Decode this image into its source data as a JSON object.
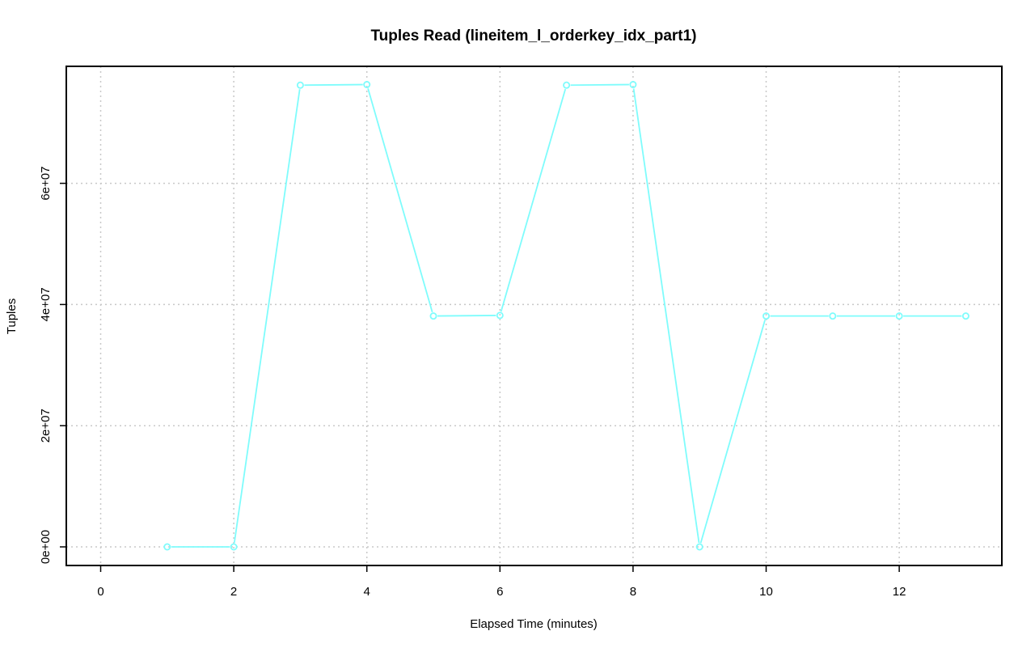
{
  "chart_data": {
    "type": "line",
    "title": "Tuples Read (lineitem_l_orderkey_idx_part1)",
    "xlabel": "Elapsed Time (minutes)",
    "ylabel": "Tuples",
    "xlim": [
      0,
      13
    ],
    "ylim": [
      0,
      76000000
    ],
    "x_ticks": [
      0,
      2,
      4,
      6,
      8,
      10,
      12
    ],
    "x_tick_labels": [
      "0",
      "2",
      "4",
      "6",
      "8",
      "10",
      "12"
    ],
    "y_ticks": [
      0,
      20000000,
      40000000,
      60000000
    ],
    "y_tick_labels": [
      "0e+00",
      "2e+07",
      "4e+07",
      "6e+07"
    ],
    "grid": true,
    "series": [
      {
        "color": "#7ffcfc",
        "x": [
          1,
          2,
          3,
          4,
          5,
          6,
          7,
          8,
          9,
          10,
          11,
          12,
          13
        ],
        "values": [
          0,
          0,
          76200000,
          76300000,
          38100000,
          38200000,
          76200000,
          76300000,
          0,
          38100000,
          38100000,
          38100000,
          38100000
        ]
      }
    ]
  }
}
